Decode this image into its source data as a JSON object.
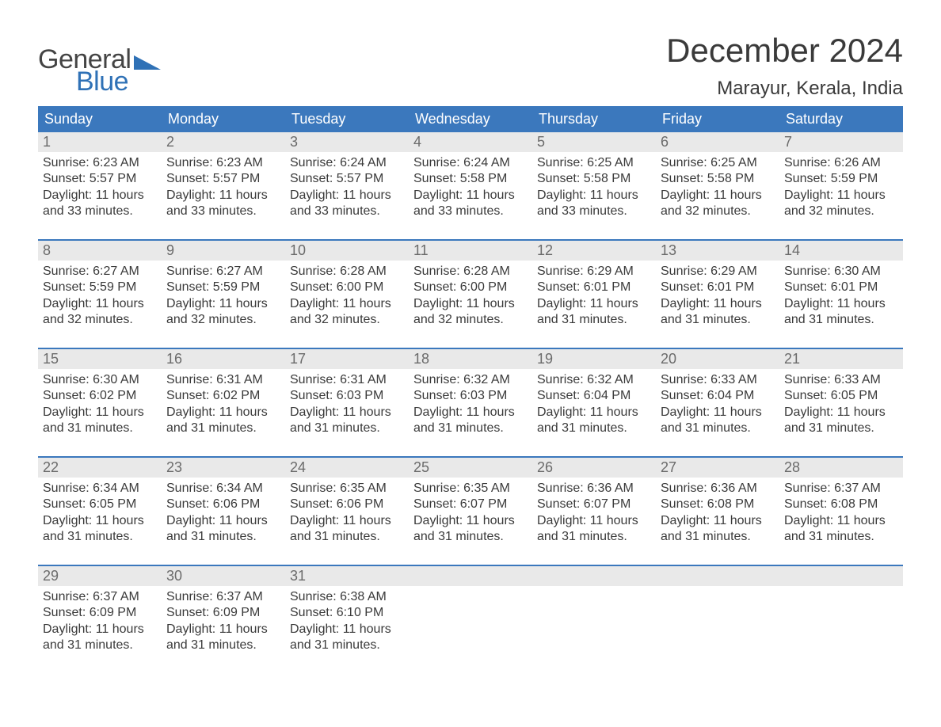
{
  "colors": {
    "header_bg": "#3b78bd",
    "header_text": "#ffffff",
    "daynum_bg": "#e9e9e9",
    "daynum_text": "#6b6b6b",
    "body_text": "#3a3a3a",
    "logo_gray": "#444444",
    "logo_blue": "#2f71b6",
    "week_border": "#3b78bd",
    "background": "#ffffff"
  },
  "typography": {
    "title_fontsize": 42,
    "location_fontsize": 24,
    "dow_fontsize": 18,
    "daynum_fontsize": 18,
    "cell_fontsize": 16,
    "logo_fontsize": 34
  },
  "logo": {
    "line1": "General",
    "line2": "Blue"
  },
  "title": "December 2024",
  "location": "Marayur, Kerala, India",
  "days_of_week": [
    "Sunday",
    "Monday",
    "Tuesday",
    "Wednesday",
    "Thursday",
    "Friday",
    "Saturday"
  ],
  "weeks": [
    [
      {
        "n": "1",
        "sunrise": "Sunrise: 6:23 AM",
        "sunset": "Sunset: 5:57 PM",
        "d1": "Daylight: 11 hours",
        "d2": "and 33 minutes."
      },
      {
        "n": "2",
        "sunrise": "Sunrise: 6:23 AM",
        "sunset": "Sunset: 5:57 PM",
        "d1": "Daylight: 11 hours",
        "d2": "and 33 minutes."
      },
      {
        "n": "3",
        "sunrise": "Sunrise: 6:24 AM",
        "sunset": "Sunset: 5:57 PM",
        "d1": "Daylight: 11 hours",
        "d2": "and 33 minutes."
      },
      {
        "n": "4",
        "sunrise": "Sunrise: 6:24 AM",
        "sunset": "Sunset: 5:58 PM",
        "d1": "Daylight: 11 hours",
        "d2": "and 33 minutes."
      },
      {
        "n": "5",
        "sunrise": "Sunrise: 6:25 AM",
        "sunset": "Sunset: 5:58 PM",
        "d1": "Daylight: 11 hours",
        "d2": "and 33 minutes."
      },
      {
        "n": "6",
        "sunrise": "Sunrise: 6:25 AM",
        "sunset": "Sunset: 5:58 PM",
        "d1": "Daylight: 11 hours",
        "d2": "and 32 minutes."
      },
      {
        "n": "7",
        "sunrise": "Sunrise: 6:26 AM",
        "sunset": "Sunset: 5:59 PM",
        "d1": "Daylight: 11 hours",
        "d2": "and 32 minutes."
      }
    ],
    [
      {
        "n": "8",
        "sunrise": "Sunrise: 6:27 AM",
        "sunset": "Sunset: 5:59 PM",
        "d1": "Daylight: 11 hours",
        "d2": "and 32 minutes."
      },
      {
        "n": "9",
        "sunrise": "Sunrise: 6:27 AM",
        "sunset": "Sunset: 5:59 PM",
        "d1": "Daylight: 11 hours",
        "d2": "and 32 minutes."
      },
      {
        "n": "10",
        "sunrise": "Sunrise: 6:28 AM",
        "sunset": "Sunset: 6:00 PM",
        "d1": "Daylight: 11 hours",
        "d2": "and 32 minutes."
      },
      {
        "n": "11",
        "sunrise": "Sunrise: 6:28 AM",
        "sunset": "Sunset: 6:00 PM",
        "d1": "Daylight: 11 hours",
        "d2": "and 32 minutes."
      },
      {
        "n": "12",
        "sunrise": "Sunrise: 6:29 AM",
        "sunset": "Sunset: 6:01 PM",
        "d1": "Daylight: 11 hours",
        "d2": "and 31 minutes."
      },
      {
        "n": "13",
        "sunrise": "Sunrise: 6:29 AM",
        "sunset": "Sunset: 6:01 PM",
        "d1": "Daylight: 11 hours",
        "d2": "and 31 minutes."
      },
      {
        "n": "14",
        "sunrise": "Sunrise: 6:30 AM",
        "sunset": "Sunset: 6:01 PM",
        "d1": "Daylight: 11 hours",
        "d2": "and 31 minutes."
      }
    ],
    [
      {
        "n": "15",
        "sunrise": "Sunrise: 6:30 AM",
        "sunset": "Sunset: 6:02 PM",
        "d1": "Daylight: 11 hours",
        "d2": "and 31 minutes."
      },
      {
        "n": "16",
        "sunrise": "Sunrise: 6:31 AM",
        "sunset": "Sunset: 6:02 PM",
        "d1": "Daylight: 11 hours",
        "d2": "and 31 minutes."
      },
      {
        "n": "17",
        "sunrise": "Sunrise: 6:31 AM",
        "sunset": "Sunset: 6:03 PM",
        "d1": "Daylight: 11 hours",
        "d2": "and 31 minutes."
      },
      {
        "n": "18",
        "sunrise": "Sunrise: 6:32 AM",
        "sunset": "Sunset: 6:03 PM",
        "d1": "Daylight: 11 hours",
        "d2": "and 31 minutes."
      },
      {
        "n": "19",
        "sunrise": "Sunrise: 6:32 AM",
        "sunset": "Sunset: 6:04 PM",
        "d1": "Daylight: 11 hours",
        "d2": "and 31 minutes."
      },
      {
        "n": "20",
        "sunrise": "Sunrise: 6:33 AM",
        "sunset": "Sunset: 6:04 PM",
        "d1": "Daylight: 11 hours",
        "d2": "and 31 minutes."
      },
      {
        "n": "21",
        "sunrise": "Sunrise: 6:33 AM",
        "sunset": "Sunset: 6:05 PM",
        "d1": "Daylight: 11 hours",
        "d2": "and 31 minutes."
      }
    ],
    [
      {
        "n": "22",
        "sunrise": "Sunrise: 6:34 AM",
        "sunset": "Sunset: 6:05 PM",
        "d1": "Daylight: 11 hours",
        "d2": "and 31 minutes."
      },
      {
        "n": "23",
        "sunrise": "Sunrise: 6:34 AM",
        "sunset": "Sunset: 6:06 PM",
        "d1": "Daylight: 11 hours",
        "d2": "and 31 minutes."
      },
      {
        "n": "24",
        "sunrise": "Sunrise: 6:35 AM",
        "sunset": "Sunset: 6:06 PM",
        "d1": "Daylight: 11 hours",
        "d2": "and 31 minutes."
      },
      {
        "n": "25",
        "sunrise": "Sunrise: 6:35 AM",
        "sunset": "Sunset: 6:07 PM",
        "d1": "Daylight: 11 hours",
        "d2": "and 31 minutes."
      },
      {
        "n": "26",
        "sunrise": "Sunrise: 6:36 AM",
        "sunset": "Sunset: 6:07 PM",
        "d1": "Daylight: 11 hours",
        "d2": "and 31 minutes."
      },
      {
        "n": "27",
        "sunrise": "Sunrise: 6:36 AM",
        "sunset": "Sunset: 6:08 PM",
        "d1": "Daylight: 11 hours",
        "d2": "and 31 minutes."
      },
      {
        "n": "28",
        "sunrise": "Sunrise: 6:37 AM",
        "sunset": "Sunset: 6:08 PM",
        "d1": "Daylight: 11 hours",
        "d2": "and 31 minutes."
      }
    ],
    [
      {
        "n": "29",
        "sunrise": "Sunrise: 6:37 AM",
        "sunset": "Sunset: 6:09 PM",
        "d1": "Daylight: 11 hours",
        "d2": "and 31 minutes."
      },
      {
        "n": "30",
        "sunrise": "Sunrise: 6:37 AM",
        "sunset": "Sunset: 6:09 PM",
        "d1": "Daylight: 11 hours",
        "d2": "and 31 minutes."
      },
      {
        "n": "31",
        "sunrise": "Sunrise: 6:38 AM",
        "sunset": "Sunset: 6:10 PM",
        "d1": "Daylight: 11 hours",
        "d2": "and 31 minutes."
      },
      null,
      null,
      null,
      null
    ]
  ]
}
